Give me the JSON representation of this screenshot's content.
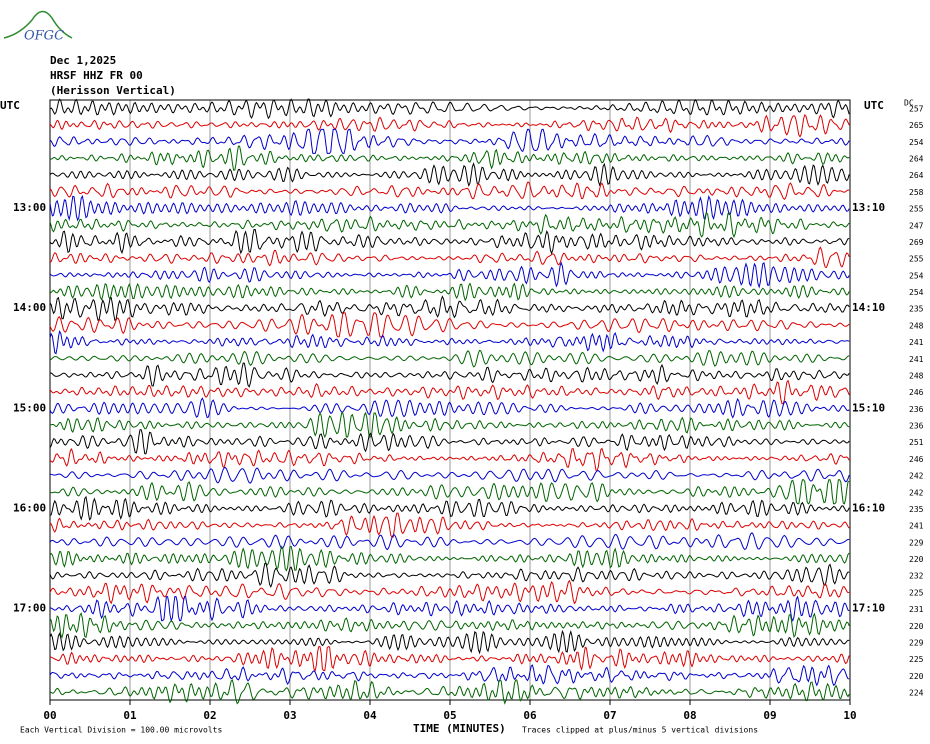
{
  "header": {
    "logo": "OFGC",
    "date": "Dec 1,2025",
    "station": "HRSF HHZ FR 00",
    "description": "(Herisson Vertical)"
  },
  "chart_data": {
    "type": "helicorder",
    "utc_left": "UTC",
    "utc_right": "UTC",
    "dc_label": "DC",
    "hour_labels_left": [
      "13:00",
      "14:00",
      "15:00",
      "16:00",
      "17:00"
    ],
    "hour_labels_right": [
      "13:10",
      "14:10",
      "15:10",
      "16:10",
      "17:10"
    ],
    "trace_colors": [
      "#000000",
      "#dd0000",
      "#0000cc",
      "#006400"
    ],
    "dc_values": [
      257,
      265,
      254,
      264,
      264,
      258,
      255,
      247,
      269,
      255,
      254,
      254,
      235,
      248,
      241,
      241,
      248,
      246,
      236,
      236,
      251,
      246,
      242,
      242,
      235,
      241,
      229,
      220,
      232,
      225,
      231,
      220,
      229,
      225,
      220,
      224
    ],
    "xlim": [
      0,
      10
    ],
    "xticks": [
      {
        "value": 0,
        "label": "00"
      },
      {
        "value": 1,
        "label": "01"
      },
      {
        "value": 2,
        "label": "02"
      },
      {
        "value": 3,
        "label": "03"
      },
      {
        "value": 4,
        "label": "04"
      },
      {
        "value": 5,
        "label": "05"
      },
      {
        "value": 6,
        "label": "06"
      },
      {
        "value": 7,
        "label": "07"
      },
      {
        "value": 8,
        "label": "08"
      },
      {
        "value": 9,
        "label": "09"
      },
      {
        "value": 10,
        "label": "10"
      }
    ],
    "xlabel": "TIME (MINUTES)",
    "scale_note": "Each Vertical Division =  100.00 microvolts",
    "clip_note": "Traces clipped at plus/minus 5 vertical divisions",
    "grid": true
  }
}
